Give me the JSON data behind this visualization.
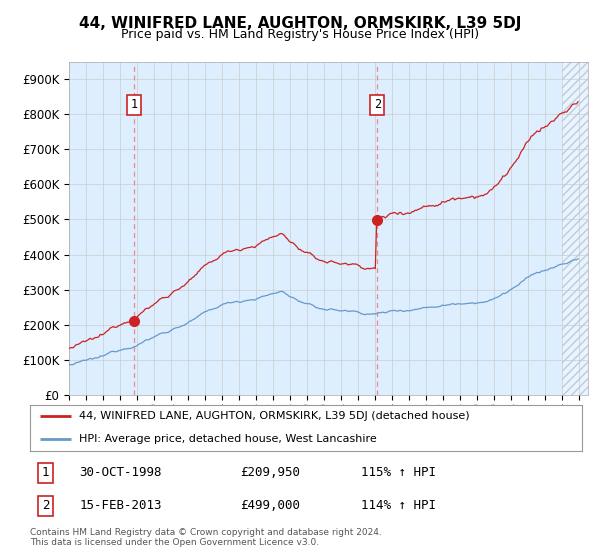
{
  "title": "44, WINIFRED LANE, AUGHTON, ORMSKIRK, L39 5DJ",
  "subtitle": "Price paid vs. HM Land Registry's House Price Index (HPI)",
  "legend_line1": "44, WINIFRED LANE, AUGHTON, ORMSKIRK, L39 5DJ (detached house)",
  "legend_line2": "HPI: Average price, detached house, West Lancashire",
  "sale1_date": "30-OCT-1998",
  "sale1_year": 1998.83,
  "sale1_price": 209950,
  "sale1_hpi_pct": "115%",
  "sale2_date": "15-FEB-2013",
  "sale2_year": 2013.12,
  "sale2_price": 499000,
  "sale2_hpi_pct": "114%",
  "footer": "Contains HM Land Registry data © Crown copyright and database right 2024.\nThis data is licensed under the Open Government Licence v3.0.",
  "hpi_color": "#6699cc",
  "price_color": "#cc2222",
  "vline_color": "#ee8888",
  "box_edge_color": "#cc2222",
  "bg_color": "#ddeeff",
  "hatch_color": "#bbccdd",
  "ylim": [
    0,
    950000
  ],
  "xlim_start": 1995.0,
  "xlim_end": 2025.5,
  "hatch_start": 2024.0
}
